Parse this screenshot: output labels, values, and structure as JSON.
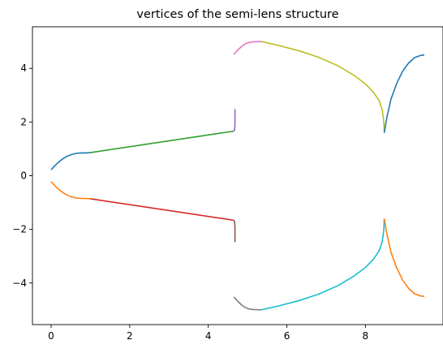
{
  "chart_data": {
    "type": "line",
    "title": "vertices of the semi-lens structure",
    "xlabel": "",
    "ylabel": "",
    "xlim": [
      -0.475,
      9.975
    ],
    "ylim": [
      -5.55,
      5.55
    ],
    "xticks": [
      0,
      2,
      4,
      6,
      8
    ],
    "yticks": [
      -4,
      -2,
      0,
      2,
      4
    ],
    "grid": false,
    "legend": "none",
    "series": [
      {
        "color": "#1f77b4",
        "points": [
          [
            0.0,
            0.22
          ],
          [
            0.1,
            0.38
          ],
          [
            0.2,
            0.52
          ],
          [
            0.3,
            0.63
          ],
          [
            0.4,
            0.72
          ],
          [
            0.5,
            0.78
          ],
          [
            0.6,
            0.82
          ],
          [
            0.7,
            0.84
          ],
          [
            0.8,
            0.85
          ],
          [
            0.9,
            0.85
          ],
          [
            1.0,
            0.86
          ]
        ]
      },
      {
        "color": "#ff7f0e",
        "points": [
          [
            0.0,
            -0.22
          ],
          [
            0.1,
            -0.38
          ],
          [
            0.2,
            -0.52
          ],
          [
            0.3,
            -0.63
          ],
          [
            0.4,
            -0.72
          ],
          [
            0.5,
            -0.78
          ],
          [
            0.6,
            -0.82
          ],
          [
            0.7,
            -0.84
          ],
          [
            0.8,
            -0.85
          ],
          [
            0.9,
            -0.85
          ],
          [
            1.0,
            -0.86
          ]
        ]
      },
      {
        "color": "#2ca02c",
        "points": [
          [
            1.0,
            0.86
          ],
          [
            4.65,
            1.66
          ]
        ]
      },
      {
        "color": "#d62728",
        "points": [
          [
            1.0,
            -0.86
          ],
          [
            4.65,
            -1.66
          ]
        ]
      },
      {
        "color": "#9467bd",
        "points": [
          [
            4.65,
            1.66
          ],
          [
            4.67,
            1.72
          ],
          [
            4.68,
            1.9
          ],
          [
            4.68,
            2.48
          ]
        ]
      },
      {
        "color": "#8c564b",
        "points": [
          [
            4.65,
            -1.66
          ],
          [
            4.67,
            -1.72
          ],
          [
            4.68,
            -1.9
          ],
          [
            4.68,
            -2.48
          ]
        ]
      },
      {
        "color": "#e377c2",
        "points": [
          [
            4.65,
            4.52
          ],
          [
            4.75,
            4.68
          ],
          [
            4.85,
            4.82
          ],
          [
            4.95,
            4.92
          ],
          [
            5.05,
            4.97
          ],
          [
            5.15,
            4.99
          ],
          [
            5.35,
            5.0
          ]
        ]
      },
      {
        "color": "#7f7f7f",
        "points": [
          [
            4.65,
            -4.52
          ],
          [
            4.75,
            -4.68
          ],
          [
            4.85,
            -4.82
          ],
          [
            4.95,
            -4.92
          ],
          [
            5.05,
            -4.97
          ],
          [
            5.15,
            -4.99
          ],
          [
            5.35,
            -5.0
          ]
        ]
      },
      {
        "color": "#bcbd22",
        "points": [
          [
            5.35,
            5.0
          ],
          [
            5.8,
            4.85
          ],
          [
            6.3,
            4.66
          ],
          [
            6.8,
            4.42
          ],
          [
            7.3,
            4.1
          ],
          [
            7.7,
            3.75
          ],
          [
            8.0,
            3.42
          ],
          [
            8.2,
            3.12
          ],
          [
            8.35,
            2.8
          ],
          [
            8.43,
            2.45
          ],
          [
            8.47,
            2.0
          ],
          [
            8.48,
            1.6
          ]
        ]
      },
      {
        "color": "#17becf",
        "points": [
          [
            5.35,
            -5.0
          ],
          [
            5.8,
            -4.85
          ],
          [
            6.3,
            -4.66
          ],
          [
            6.8,
            -4.42
          ],
          [
            7.3,
            -4.1
          ],
          [
            7.7,
            -3.75
          ],
          [
            8.0,
            -3.42
          ],
          [
            8.2,
            -3.12
          ],
          [
            8.35,
            -2.8
          ],
          [
            8.43,
            -2.45
          ],
          [
            8.47,
            -2.0
          ],
          [
            8.48,
            -1.6
          ]
        ]
      },
      {
        "color": "#1f77b4",
        "points": [
          [
            8.48,
            1.6
          ],
          [
            8.55,
            2.2
          ],
          [
            8.65,
            2.85
          ],
          [
            8.8,
            3.45
          ],
          [
            8.95,
            3.9
          ],
          [
            9.1,
            4.2
          ],
          [
            9.25,
            4.4
          ],
          [
            9.4,
            4.48
          ],
          [
            9.5,
            4.5
          ]
        ]
      },
      {
        "color": "#ff7f0e",
        "points": [
          [
            8.48,
            -1.6
          ],
          [
            8.55,
            -2.2
          ],
          [
            8.65,
            -2.85
          ],
          [
            8.8,
            -3.45
          ],
          [
            8.95,
            -3.9
          ],
          [
            9.1,
            -4.2
          ],
          [
            9.25,
            -4.4
          ],
          [
            9.4,
            -4.48
          ],
          [
            9.5,
            -4.5
          ]
        ]
      }
    ]
  }
}
